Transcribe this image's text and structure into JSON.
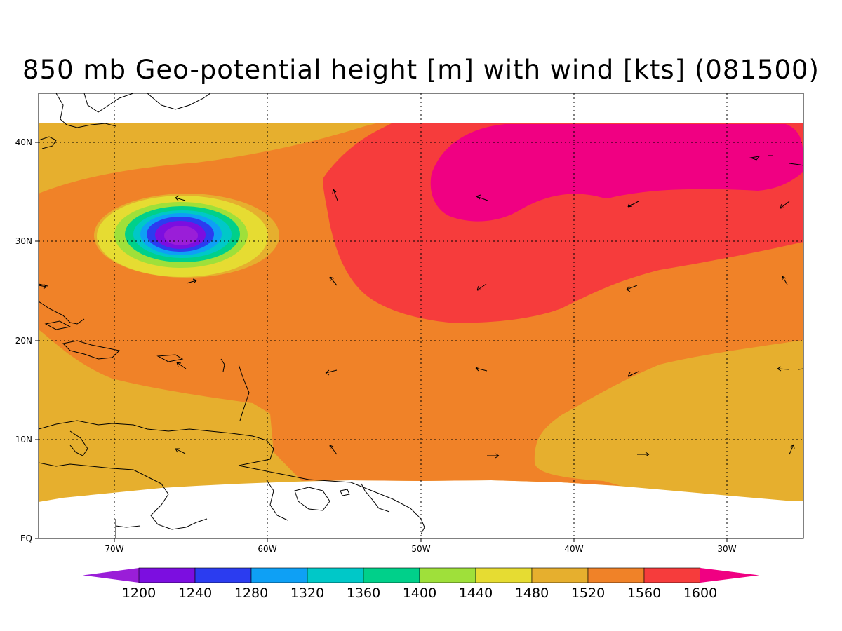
{
  "title": "850 mb Geo-potential height [m] with wind [kts] (081500)",
  "lon_labels": [
    "70W",
    "60W",
    "50W",
    "40W",
    "30W"
  ],
  "lat_labels": [
    "EQ",
    "10N",
    "20N",
    "30N",
    "40N"
  ],
  "colorbar": {
    "levels": [
      "1200",
      "1240",
      "1280",
      "1320",
      "1360",
      "1400",
      "1440",
      "1480",
      "1520",
      "1560",
      "1600"
    ],
    "colors": [
      "#9a1ed8",
      "#7c0ee0",
      "#2b3cf0",
      "#0ea0f5",
      "#00c8c8",
      "#00d08a",
      "#9fe03a",
      "#e6dc32",
      "#e6af2e",
      "#f08228",
      "#f63c3c",
      "#f00082"
    ]
  },
  "fill_colors": {
    "c1480": "#e6dc32",
    "c1520": "#e6af2e",
    "c1560": "#f08228",
    "c1600": "#f63c3c",
    "c1640": "#f00082",
    "low_1440": "#9fe03a",
    "low_1400": "#00d08a",
    "low_1360": "#00c8c8",
    "low_1320": "#0ea0f5",
    "low_1280": "#2b3cf0",
    "low_1240": "#7c0ee0",
    "low_1200": "#9a1ed8"
  }
}
